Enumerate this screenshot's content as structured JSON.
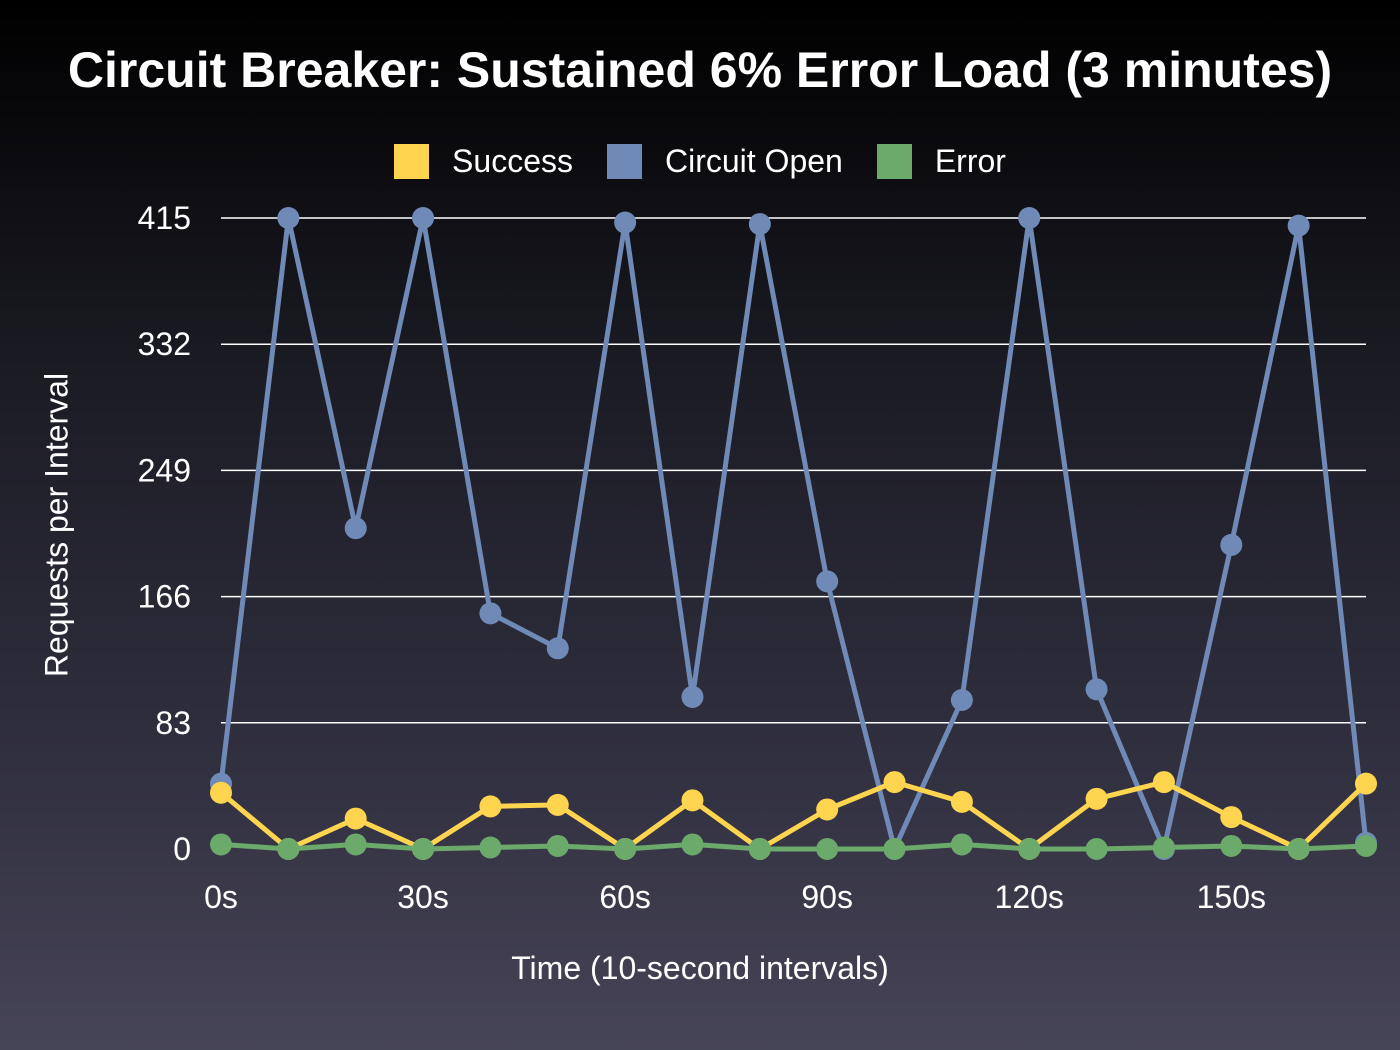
{
  "chart_data": {
    "type": "line",
    "title": "Circuit Breaker: Sustained 6% Error Load (3 minutes)",
    "xlabel": "Time (10-second intervals)",
    "ylabel": "Requests per Interval",
    "x": [
      0,
      10,
      20,
      30,
      40,
      50,
      60,
      70,
      80,
      90,
      100,
      110,
      120,
      130,
      140,
      150,
      160,
      170
    ],
    "x_ticks": [
      0,
      30,
      60,
      90,
      120,
      150
    ],
    "x_tick_labels": [
      "0s",
      "30s",
      "60s",
      "90s",
      "120s",
      "150s"
    ],
    "xlim": [
      0,
      170
    ],
    "y_ticks": [
      0,
      83,
      166,
      249,
      332,
      415
    ],
    "y_tick_labels": [
      "0",
      "83",
      "166",
      "249",
      "332",
      "415"
    ],
    "ylim": [
      0,
      415
    ],
    "grid": true,
    "legend_position": "top-center",
    "series": [
      {
        "name": "Success",
        "color": "#FFD54F",
        "values": [
          37,
          0,
          20,
          0,
          28,
          29,
          0,
          32,
          0,
          26,
          44,
          31,
          0,
          33,
          44,
          21,
          0,
          43
        ]
      },
      {
        "name": "Circuit Open",
        "color": "#6F8AB7",
        "values": [
          43,
          415,
          211,
          415,
          155,
          132,
          412,
          100,
          411,
          176,
          0,
          98,
          415,
          105,
          0,
          200,
          410,
          4
        ]
      },
      {
        "name": "Error",
        "color": "#6BAA6B",
        "values": [
          3,
          0,
          3,
          0,
          1,
          2,
          0,
          3,
          0,
          0,
          0,
          3,
          0,
          0,
          1,
          2,
          0,
          2
        ]
      }
    ]
  }
}
